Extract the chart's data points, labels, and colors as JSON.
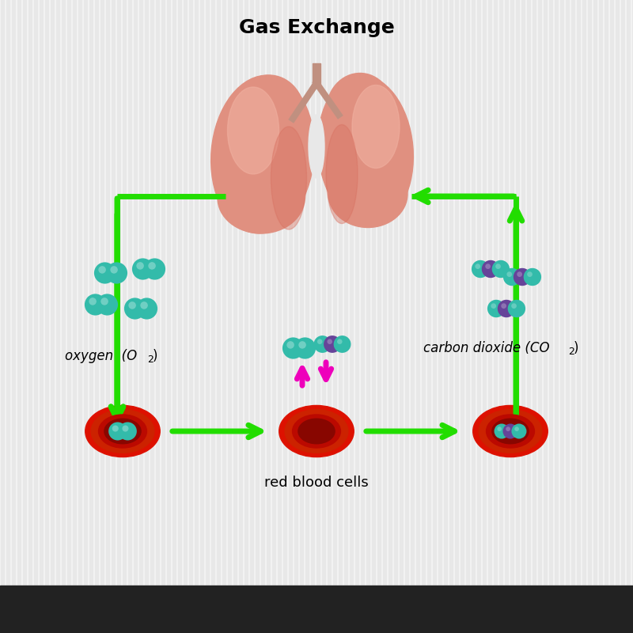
{
  "title": "Gas Exchange",
  "title_fontsize": 18,
  "title_fontweight": "bold",
  "background_color": "#e8e8e8",
  "stripe_color": "#f5f5f5",
  "green_color": "#22dd00",
  "magenta_color": "#ee00bb",
  "oxygen_label": "oxygen  (O",
  "oxygen_sub": "2",
  "co2_label": "carbon dioxide (CO",
  "co2_sub": "2",
  "rbc_label": "red blood cells",
  "label_fontsize": 12,
  "teal_color": "#33bbaa",
  "teal_dark": "#229988",
  "purple_color": "#664499",
  "red_outer": "#dd1100",
  "red_mid": "#bb0900",
  "red_inner": "#880600",
  "lung_base": "#e09080",
  "lung_mid": "#d87060",
  "lung_light": "#f0b0a0",
  "trachea_color": "#c09080"
}
